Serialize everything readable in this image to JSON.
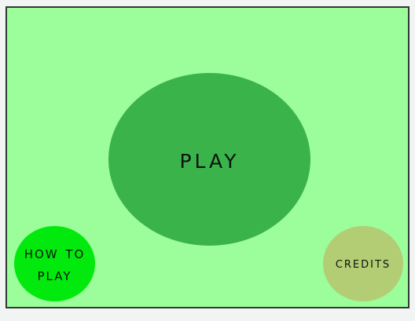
{
  "menu": {
    "play_label": "Play",
    "how_to_play_label": "How to Play",
    "credits_label": "Credits"
  },
  "colors": {
    "background": "#9cfd9b",
    "play": "#3bb34b",
    "how_to_play": "#02ea0d",
    "credits": "#b3cd74",
    "border": "#2f3a33"
  }
}
